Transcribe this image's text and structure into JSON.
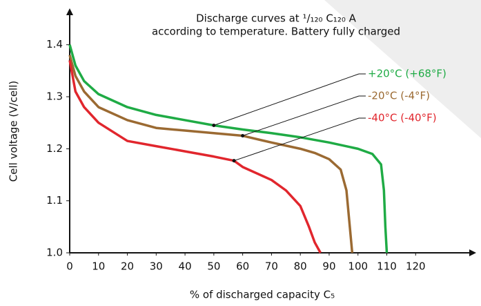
{
  "chart_data": {
    "type": "line",
    "title": "Discharge curves at ¹/₁₂₀ C₁₂₀ A",
    "subtitle": "according to temperature. Battery fully charged",
    "x_label": "% of discharged capacity C₅",
    "y_label": "Cell voltage   (V/cell)",
    "xlim": [
      0,
      141
    ],
    "ylim": [
      1.0,
      1.47
    ],
    "xticks": [
      0,
      10,
      20,
      30,
      40,
      50,
      60,
      70,
      80,
      90,
      100,
      110,
      120
    ],
    "yticks": [
      {
        "value": 1.0,
        "label": "1.0"
      },
      1.1,
      1.2,
      1.3,
      1.4
    ],
    "grid": false,
    "series": [
      {
        "name": "+20°C (+68°F)",
        "color": "#1fab45",
        "x": [
          0,
          2,
          5,
          10,
          20,
          30,
          40,
          50,
          60,
          70,
          80,
          90,
          100,
          105,
          108,
          109,
          109.5,
          110
        ],
        "values": [
          1.4,
          1.36,
          1.33,
          1.305,
          1.28,
          1.265,
          1.255,
          1.245,
          1.237,
          1.23,
          1.222,
          1.212,
          1.2,
          1.19,
          1.17,
          1.12,
          1.05,
          1.0
        ]
      },
      {
        "name": "-20°C (-4°F)",
        "color": "#9b6a32",
        "x": [
          0,
          2,
          5,
          10,
          20,
          30,
          40,
          50,
          60,
          70,
          80,
          85,
          90,
          94,
          96,
          97,
          98
        ],
        "values": [
          1.38,
          1.34,
          1.31,
          1.28,
          1.255,
          1.24,
          1.235,
          1.23,
          1.225,
          1.212,
          1.2,
          1.192,
          1.18,
          1.16,
          1.12,
          1.06,
          1.0
        ]
      },
      {
        "name": "-40°C (-40°F)",
        "color": "#e1262d",
        "x": [
          0,
          2,
          5,
          10,
          20,
          30,
          40,
          50,
          57,
          60,
          70,
          75,
          80,
          83,
          85,
          87
        ],
        "values": [
          1.37,
          1.31,
          1.28,
          1.25,
          1.215,
          1.205,
          1.195,
          1.185,
          1.177,
          1.165,
          1.14,
          1.12,
          1.09,
          1.05,
          1.02,
          1.0
        ]
      }
    ]
  }
}
